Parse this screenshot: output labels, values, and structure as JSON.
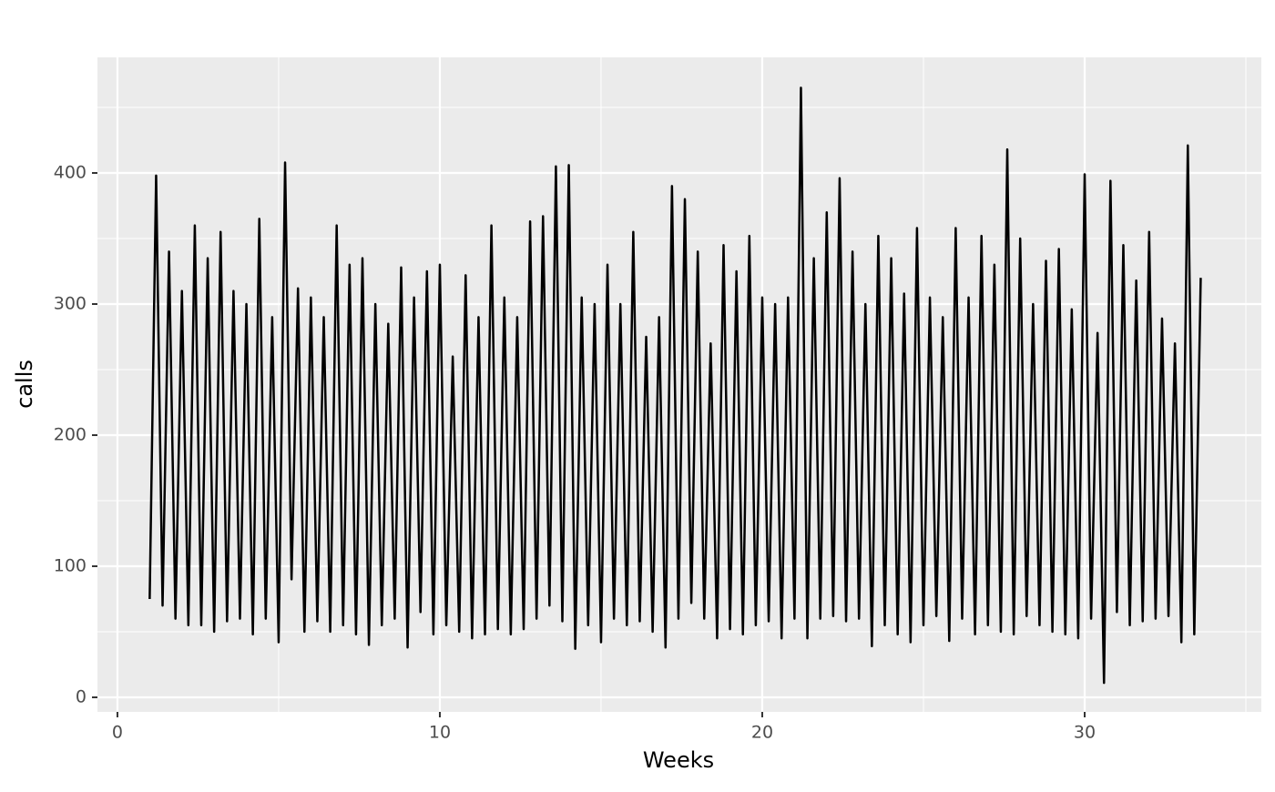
{
  "chart_data": {
    "type": "line",
    "x_label": "Weeks",
    "y_label": "calls",
    "x": [
      1,
      1.2,
      1.4,
      1.6,
      1.8,
      2,
      2.2,
      2.4,
      2.6,
      2.8,
      3,
      3.2,
      3.4,
      3.6,
      3.8,
      4,
      4.2,
      4.4,
      4.6,
      4.8,
      5,
      5.2,
      5.4,
      5.6,
      5.8,
      6,
      6.2,
      6.4,
      6.6,
      6.8,
      7,
      7.2,
      7.4,
      7.6,
      7.8,
      8,
      8.2,
      8.4,
      8.6,
      8.8,
      9,
      9.2,
      9.4,
      9.6,
      9.8,
      10,
      10.2,
      10.4,
      10.6,
      10.8,
      11,
      11.2,
      11.4,
      11.6,
      11.8,
      12,
      12.2,
      12.4,
      12.6,
      12.8,
      13,
      13.2,
      13.4,
      13.6,
      13.8,
      14,
      14.2,
      14.4,
      14.6,
      14.8,
      15,
      15.2,
      15.4,
      15.6,
      15.8,
      16,
      16.2,
      16.4,
      16.6,
      16.8,
      17,
      17.2,
      17.4,
      17.6,
      17.8,
      18,
      18.2,
      18.4,
      18.6,
      18.8,
      19,
      19.2,
      19.4,
      19.6,
      19.8,
      20,
      20.2,
      20.4,
      20.6,
      20.8,
      21,
      21.2,
      21.4,
      21.6,
      21.8,
      22,
      22.2,
      22.4,
      22.6,
      22.8,
      23,
      23.2,
      23.4,
      23.6,
      23.8,
      24,
      24.2,
      24.4,
      24.6,
      24.8,
      25,
      25.2,
      25.4,
      25.6,
      25.8,
      26,
      26.2,
      26.4,
      26.6,
      26.8,
      27,
      27.2,
      27.4,
      27.6,
      27.8,
      28,
      28.2,
      28.4,
      28.6,
      28.8,
      29,
      29.2,
      29.4,
      29.6,
      29.8,
      30,
      30.2,
      30.4,
      30.6,
      30.8,
      31,
      31.2,
      31.4,
      31.6,
      31.8,
      32,
      32.2,
      32.4,
      32.6,
      32.8,
      33,
      33.2,
      33.4,
      33.6
    ],
    "series": [
      {
        "color": "#000000",
        "values": [
          75,
          398,
          70,
          340,
          60,
          310,
          55,
          360,
          55,
          335,
          50,
          355,
          58,
          310,
          60,
          300,
          48,
          365,
          60,
          290,
          42,
          408,
          90,
          312,
          50,
          305,
          58,
          290,
          50,
          360,
          55,
          330,
          48,
          335,
          40,
          300,
          55,
          285,
          60,
          328,
          38,
          305,
          65,
          325,
          48,
          330,
          55,
          260,
          50,
          322,
          45,
          290,
          48,
          360,
          52,
          305,
          48,
          290,
          52,
          363,
          60,
          367,
          70,
          405,
          58,
          406,
          37,
          305,
          55,
          300,
          42,
          330,
          60,
          300,
          55,
          355,
          58,
          275,
          50,
          290,
          38,
          390,
          60,
          380,
          72,
          340,
          60,
          270,
          45,
          345,
          52,
          325,
          48,
          352,
          55,
          305,
          58,
          300,
          45,
          305,
          60,
          465,
          45,
          335,
          60,
          370,
          62,
          396,
          58,
          340,
          60,
          300,
          39,
          352,
          55,
          335,
          48,
          308,
          42,
          358,
          55,
          305,
          62,
          290,
          43,
          358,
          60,
          305,
          48,
          352,
          55,
          330,
          50,
          418,
          48,
          350,
          62,
          300,
          55,
          333,
          50,
          342,
          48,
          296,
          45,
          399,
          60,
          278,
          11,
          394,
          65,
          345,
          55,
          318,
          58,
          355,
          60,
          289,
          62,
          270,
          42,
          421,
          48,
          320
        ]
      }
    ],
    "xlim": [
      -0.62,
      35.48
    ],
    "ylim": [
      -11.1,
      488.2
    ],
    "xticks": [
      0,
      10,
      20,
      30
    ],
    "yticks": [
      0,
      100,
      200,
      300,
      400
    ],
    "x_minor_grid": [
      5,
      15,
      25,
      35
    ],
    "y_minor_grid": [
      50,
      150,
      250,
      350,
      450
    ],
    "grid": true
  }
}
